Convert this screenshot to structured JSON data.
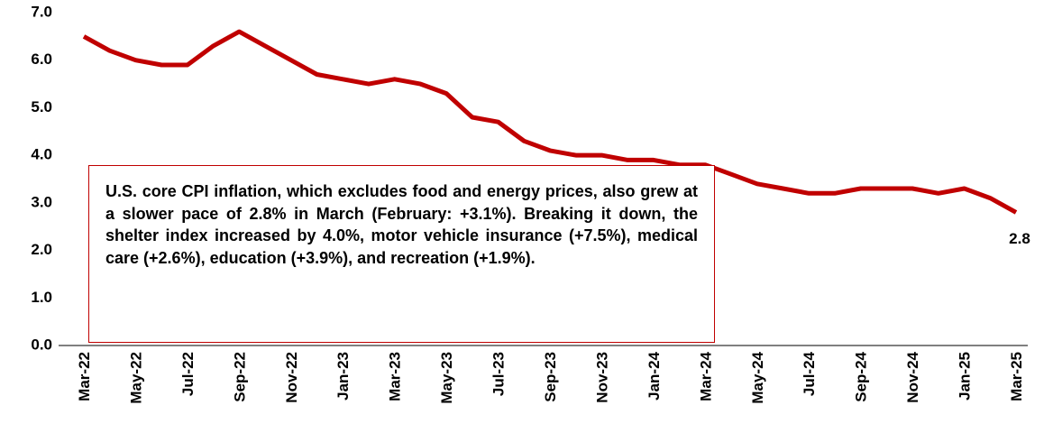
{
  "chart_data": {
    "type": "line",
    "categories": [
      "Mar-22",
      null,
      "May-22",
      null,
      "Jul-22",
      null,
      "Sep-22",
      null,
      "Nov-22",
      null,
      "Jan-23",
      null,
      "Mar-23",
      null,
      "May-23",
      null,
      "Jul-23",
      null,
      "Sep-23",
      null,
      "Nov-23",
      null,
      "Jan-24",
      null,
      "Mar-24",
      null,
      "May-24",
      null,
      "Jul-24",
      null,
      "Sep-24",
      null,
      "Nov-24",
      null,
      "Jan-25",
      null,
      "Mar-25"
    ],
    "series": [
      {
        "name": "U.S. core CPI inflation",
        "color": "#c00000",
        "values": [
          6.5,
          6.2,
          6.0,
          5.9,
          5.9,
          6.3,
          6.6,
          6.3,
          6.0,
          5.7,
          5.6,
          5.5,
          5.6,
          5.5,
          5.3,
          4.8,
          4.7,
          4.3,
          4.1,
          4.0,
          4.0,
          3.9,
          3.9,
          3.8,
          3.8,
          3.6,
          3.4,
          3.3,
          3.2,
          3.2,
          3.3,
          3.3,
          3.3,
          3.2,
          3.3,
          3.1,
          2.8
        ]
      }
    ],
    "ylim": [
      0,
      7
    ],
    "yticks": [
      {
        "value": 0,
        "label": "0.0"
      },
      {
        "value": 1,
        "label": "1.0"
      },
      {
        "value": 2,
        "label": "2.0"
      },
      {
        "value": 3,
        "label": "3.0"
      },
      {
        "value": 4,
        "label": "4.0"
      },
      {
        "value": 5,
        "label": "5.0"
      },
      {
        "value": 6,
        "label": "6.0"
      },
      {
        "value": 7,
        "label": "7.0"
      }
    ],
    "grid": false,
    "annotation": "U.S. core CPI inflation, which excludes food and energy prices, also grew at a slower pace of 2.8% in March (February: +3.1%). Breaking it down, the shelter index increased by 4.0%, motor vehicle insurance (+7.5%), medical care (+2.6%), education (+3.9%), and recreation (+1.9%)."
  }
}
